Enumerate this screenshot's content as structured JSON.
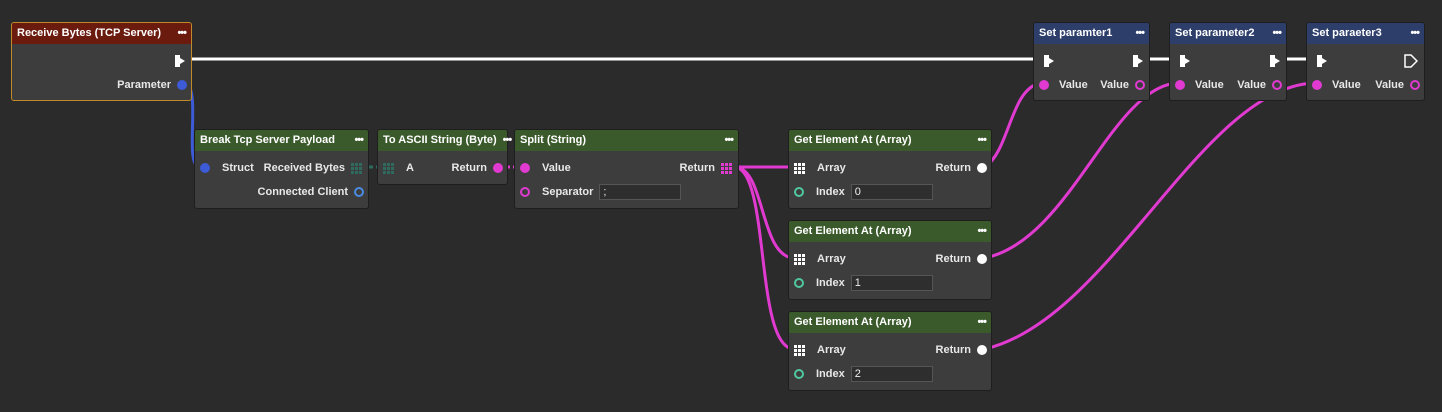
{
  "colors": {
    "exec": "#ffffff",
    "struct": "#3d5bd6",
    "string": "#e03ad0",
    "bytes": "#2e6a5e",
    "client": "#4a8ae0",
    "int": "#4fc8a0"
  },
  "nodes": {
    "receive": {
      "title": "Receive Bytes (TCP Server)",
      "menu": "•••",
      "param": "Parameter"
    },
    "break": {
      "title": "Break Tcp Server Payload",
      "menu": "•••",
      "struct": "Struct",
      "bytes": "Received Bytes",
      "client": "Connected Client"
    },
    "ascii": {
      "title": "To ASCII String (Byte)",
      "menu": "•••",
      "a": "A",
      "ret": "Return"
    },
    "split": {
      "title": "Split (String)",
      "menu": "•••",
      "value": "Value",
      "ret": "Return",
      "sep": "Separator",
      "sep_value": ";"
    },
    "get": [
      {
        "title": "Get Element At (Array)",
        "menu": "•••",
        "array": "Array",
        "ret": "Return",
        "index": "Index",
        "index_value": "0"
      },
      {
        "title": "Get Element At (Array)",
        "menu": "•••",
        "array": "Array",
        "ret": "Return",
        "index": "Index",
        "index_value": "1"
      },
      {
        "title": "Get Element At (Array)",
        "menu": "•••",
        "array": "Array",
        "ret": "Return",
        "index": "Index",
        "index_value": "2"
      }
    ],
    "set": [
      {
        "title": "Set paramter1",
        "menu": "•••",
        "in": "Value",
        "out": "Value"
      },
      {
        "title": "Set parameter2",
        "menu": "•••",
        "in": "Value",
        "out": "Value"
      },
      {
        "title": "Set paraeter3",
        "menu": "•••",
        "in": "Value",
        "out": "Value"
      }
    ]
  }
}
